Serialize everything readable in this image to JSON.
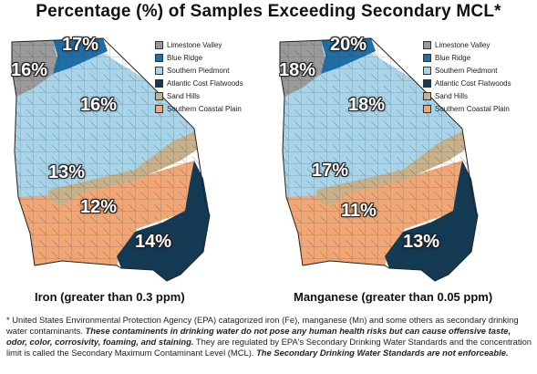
{
  "title": "Percentage (%) of Samples Exceeding Secondary MCL*",
  "colors": {
    "limestone_valley": "#9a9a9a",
    "blue_ridge": "#1f6fa8",
    "southern_piedmont": "#a8d4ea",
    "atlantic_coast_flatwoods": "#123a55",
    "sand_hills": "#c8b08a",
    "southern_coastal_plain": "#f0a775"
  },
  "legend": [
    {
      "label": "Limestone Valley",
      "color": "#9a9a9a"
    },
    {
      "label": "Blue Ridge",
      "color": "#1f6fa8"
    },
    {
      "label": "Southern Piedmont",
      "color": "#a8d4ea"
    },
    {
      "label": "Atlantic Cost Flatwoods",
      "color": "#123a55"
    },
    {
      "label": "Sand Hills",
      "color": "#c8b08a"
    },
    {
      "label": "Southern Coastal Plain",
      "color": "#f0a775"
    }
  ],
  "maps": {
    "iron": {
      "caption": "Iron (greater than 0.3 ppm)",
      "values": {
        "blue_ridge": "17%",
        "limestone_valley": "16%",
        "southern_piedmont": "16%",
        "sand_hills": "13%",
        "southern_coastal_plain": "12%",
        "atlantic_coast_flatwoods": "14%"
      }
    },
    "manganese": {
      "caption": "Manganese (greater than 0.05 ppm)",
      "values": {
        "blue_ridge": "20%",
        "limestone_valley": "18%",
        "southern_piedmont": "18%",
        "sand_hills": "17%",
        "southern_coastal_plain": "11%",
        "atlantic_coast_flatwoods": "13%"
      }
    }
  },
  "footnote": {
    "part1": "* United States Environmental Protection Agency (EPA) catagorized iron (Fe), manganese (Mn) and some others as secondary drinking water contaminants.",
    "part2": "These contaminents in drinking water do not pose any human health risks but can cause offensive taste, odor, color, corrosivity, foaming, and staining.",
    "part3": "They are regulated by EPA's Secondary Drinking Water Standards and the concentration limit is called the Secondary Maximum Contaminant Level (MCL).",
    "part4": "The Secondary Drinking Water Standards are not enforceable."
  }
}
